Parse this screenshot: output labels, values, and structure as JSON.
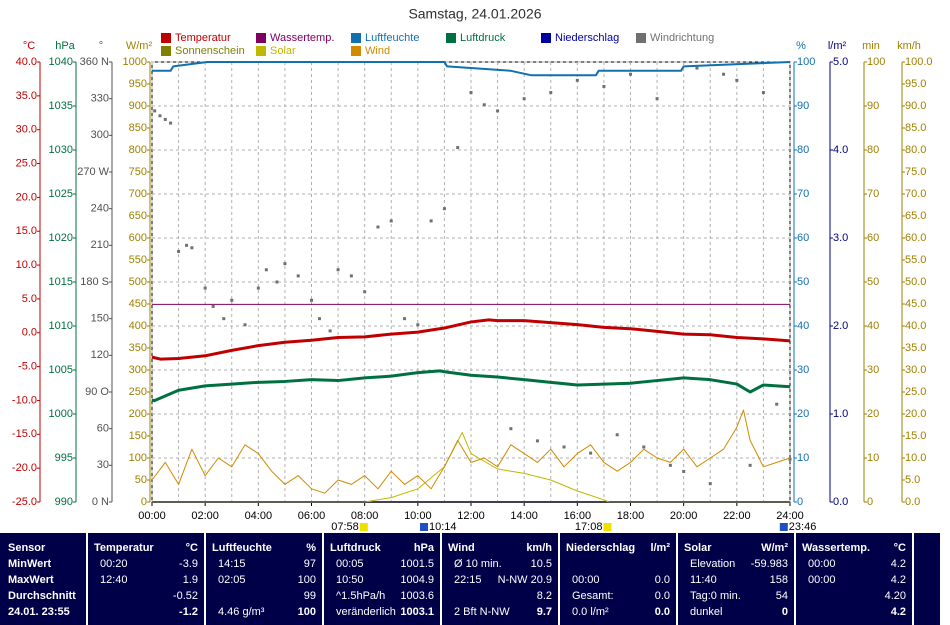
{
  "chart_data": {
    "type": "line",
    "title": "Samstag, 24.01.2026",
    "xlim": [
      0,
      24
    ],
    "xticks": [
      {
        "value": 0,
        "label": "00:00"
      },
      {
        "value": 2,
        "label": "02:00"
      },
      {
        "value": 4,
        "label": "04:00"
      },
      {
        "value": 6,
        "label": "06:00"
      },
      {
        "value": 8,
        "label": "08:00"
      },
      {
        "value": 10,
        "label": "10:00"
      },
      {
        "value": 12,
        "label": "12:00"
      },
      {
        "value": 14,
        "label": "14:00"
      },
      {
        "value": 16,
        "label": "16:00"
      },
      {
        "value": 18,
        "label": "18:00"
      },
      {
        "value": 20,
        "label": "20:00"
      },
      {
        "value": 22,
        "label": "22:00"
      },
      {
        "value": 24,
        "label": "24:00"
      }
    ],
    "xgrid": [
      0,
      1,
      2,
      3,
      4,
      5,
      6,
      7,
      8,
      9,
      10,
      11,
      12,
      13,
      14,
      15,
      16,
      17,
      18,
      19,
      20,
      21,
      22,
      23,
      24
    ],
    "axes": [
      {
        "label": "°C",
        "side": "left",
        "color": "#c00000",
        "lim": [
          -25,
          40
        ],
        "ticks": [
          {
            "value": 40,
            "label": "40.0"
          },
          {
            "value": 35,
            "label": "35.0"
          },
          {
            "value": 30,
            "label": "30.0"
          },
          {
            "value": 25,
            "label": "25.0"
          },
          {
            "value": 20,
            "label": "20.0"
          },
          {
            "value": 15,
            "label": "15.0"
          },
          {
            "value": 10,
            "label": "10.0"
          },
          {
            "value": 5,
            "label": "5.0"
          },
          {
            "value": 0,
            "label": "0.0"
          },
          {
            "value": -5,
            "label": "-5.0"
          },
          {
            "value": -10,
            "label": "-10.0"
          },
          {
            "value": -15,
            "label": "-15.0"
          },
          {
            "value": -20,
            "label": "-20.0"
          },
          {
            "value": -25,
            "label": "-25.0"
          }
        ]
      },
      {
        "label": "hPa",
        "side": "left",
        "color": "#007040",
        "lim": [
          990,
          1040
        ],
        "ticks": [
          1040,
          1035,
          1030,
          1025,
          1020,
          1015,
          1010,
          1005,
          1000,
          995,
          990
        ]
      },
      {
        "label": "°",
        "side": "left",
        "color": "#505050",
        "lim": [
          0,
          360
        ],
        "ticks": [
          {
            "value": 360,
            "label": "360 N"
          },
          330,
          300,
          {
            "value": 270,
            "label": "270 W"
          },
          240,
          210,
          {
            "value": 180,
            "label": "180 S"
          },
          150,
          120,
          {
            "value": 90,
            "label": "90 O"
          },
          60,
          30,
          {
            "value": 0,
            "label": "0 N"
          }
        ]
      },
      {
        "label": "W/m²",
        "side": "left",
        "color": "#a08000",
        "lim": [
          0,
          1000
        ],
        "ticks": [
          1000,
          950,
          900,
          850,
          800,
          750,
          700,
          650,
          600,
          550,
          500,
          450,
          400,
          350,
          300,
          250,
          200,
          150,
          100,
          50,
          0
        ]
      },
      {
        "label": "%",
        "side": "right",
        "color": "#1070b0",
        "lim": [
          0,
          100
        ],
        "grid": true,
        "ticks": [
          100,
          90,
          80,
          70,
          60,
          50,
          40,
          30,
          20,
          10,
          0
        ]
      },
      {
        "label": "l/m²",
        "side": "right",
        "color": "#000080",
        "lim": [
          0,
          5
        ],
        "ticks": [
          {
            "value": 5,
            "label": "5.0"
          },
          {
            "value": 4,
            "label": "4.0"
          },
          {
            "value": 3,
            "label": "3.0"
          },
          {
            "value": 2,
            "label": "2.0"
          },
          {
            "value": 1,
            "label": "1.0"
          },
          {
            "value": 0,
            "label": "0.0"
          }
        ]
      },
      {
        "label": "min",
        "side": "right",
        "color": "#a08000",
        "lim": [
          0,
          100
        ],
        "ticks": [
          100,
          90,
          80,
          70,
          60,
          50,
          40,
          30,
          20,
          10,
          0
        ]
      },
      {
        "label": "km/h",
        "side": "right",
        "color": "#a08000",
        "lim": [
          0,
          100
        ],
        "ticks": [
          {
            "value": 100,
            "label": "100.0"
          },
          {
            "value": 95,
            "label": "95.0"
          },
          {
            "value": 90,
            "label": "90.0"
          },
          {
            "value": 85,
            "label": "85.0"
          },
          {
            "value": 80,
            "label": "80.0"
          },
          {
            "value": 75,
            "label": "75.0"
          },
          {
            "value": 70,
            "label": "70.0"
          },
          {
            "value": 65,
            "label": "65.0"
          },
          {
            "value": 60,
            "label": "60.0"
          },
          {
            "value": 55,
            "label": "55.0"
          },
          {
            "value": 50,
            "label": "50.0"
          },
          {
            "value": 45,
            "label": "45.0"
          },
          {
            "value": 40,
            "label": "40.0"
          },
          {
            "value": 35,
            "label": "35.0"
          },
          {
            "value": 30,
            "label": "30.0"
          },
          {
            "value": 25,
            "label": "25.0"
          },
          {
            "value": 20,
            "label": "20.0"
          },
          {
            "value": 15,
            "label": "15.0"
          },
          {
            "value": 10,
            "label": "10.0"
          },
          {
            "value": 5,
            "label": "5.0"
          },
          {
            "value": 0,
            "label": "0.0"
          }
        ]
      }
    ],
    "series": [
      {
        "name": "Temperatur",
        "type": "line",
        "color": "#c00000",
        "width": 3,
        "axis": "°C",
        "x": [
          0,
          0.33,
          1,
          2,
          3,
          4,
          5,
          6,
          7,
          8,
          9,
          10,
          11,
          12,
          12.67,
          13,
          14,
          15,
          16,
          17,
          18,
          19,
          20,
          21,
          22,
          23,
          24
        ],
        "values": [
          -3.6,
          -3.9,
          -3.8,
          -3.4,
          -2.6,
          -1.9,
          -1.4,
          -1.1,
          -0.7,
          -0.6,
          -0.2,
          0.1,
          0.7,
          1.6,
          1.9,
          1.8,
          1.8,
          1.5,
          1.2,
          0.8,
          0.6,
          0.2,
          -0.2,
          -0.3,
          -0.7,
          -0.9,
          -1.2
        ]
      },
      {
        "name": "Wassertemp.",
        "type": "line",
        "color": "#800060",
        "width": 1,
        "axis": "°C",
        "x": [
          0,
          24
        ],
        "values": [
          4.2,
          4.2
        ]
      },
      {
        "name": "Luftfeuchte",
        "type": "line",
        "color": "#1070b0",
        "width": 2,
        "axis": "%",
        "x": [
          0,
          0.7,
          0.8,
          2.08,
          11,
          11.1,
          13.5,
          14.25,
          16.7,
          16.8,
          19.9,
          20,
          24
        ],
        "values": [
          98,
          98,
          99,
          100,
          100,
          99,
          98,
          97,
          97,
          98,
          98,
          99,
          100
        ]
      },
      {
        "name": "Luftdruck",
        "type": "line",
        "color": "#007040",
        "width": 3,
        "axis": "hPa",
        "x": [
          0,
          0.08,
          1,
          2,
          3,
          4,
          5,
          6,
          7,
          8,
          9,
          10,
          10.83,
          11,
          12,
          13,
          14,
          15,
          16,
          17,
          18,
          19,
          20,
          21,
          22,
          22.5,
          23,
          24
        ],
        "values": [
          1001.6,
          1001.5,
          1002.7,
          1003.2,
          1003.4,
          1003.6,
          1003.7,
          1003.9,
          1003.8,
          1004.1,
          1004.3,
          1004.7,
          1004.9,
          1004.8,
          1004.4,
          1004.2,
          1003.9,
          1003.6,
          1003.3,
          1003.4,
          1003.5,
          1003.8,
          1004.1,
          1003.9,
          1003.4,
          1002.5,
          1003.3,
          1003.1
        ]
      },
      {
        "name": "Niederschlag",
        "type": "line",
        "color": "#0000a0",
        "width": 2,
        "axis": "l/m²",
        "x": [
          0,
          24
        ],
        "values": [
          0,
          0
        ]
      },
      {
        "name": "Windrichtung",
        "type": "scatter",
        "color": "#707070",
        "axis": "°",
        "x": [
          0.1,
          0.3,
          0.5,
          0.7,
          1,
          1.3,
          1.5,
          2,
          2.3,
          2.7,
          3,
          3.5,
          4,
          4.3,
          4.7,
          5,
          5.5,
          6,
          6.3,
          6.7,
          7,
          7.5,
          8,
          8.5,
          9,
          9.5,
          10,
          10.5,
          11,
          11.5,
          12,
          12.5,
          13,
          13.5,
          14,
          14.5,
          15,
          15.5,
          16,
          16.5,
          17,
          17.5,
          18,
          18.5,
          19,
          19.5,
          20,
          20.5,
          21,
          21.5,
          22,
          22.5,
          23,
          23.5,
          24
        ],
        "values": [
          320,
          316,
          313,
          310,
          205,
          210,
          208,
          175,
          160,
          150,
          165,
          145,
          175,
          190,
          180,
          195,
          185,
          165,
          150,
          140,
          190,
          185,
          172,
          225,
          230,
          150,
          145,
          230,
          240,
          290,
          335,
          325,
          320,
          60,
          330,
          50,
          335,
          45,
          345,
          40,
          340,
          55,
          350,
          45,
          330,
          30,
          25,
          355,
          15,
          350,
          345,
          30,
          335,
          80,
          35
        ]
      },
      {
        "name": "Sonnenschein",
        "type": "line",
        "color": "#808000",
        "width": 1,
        "axis": "min",
        "x": [
          0,
          24
        ],
        "values": [
          0,
          0
        ]
      },
      {
        "name": "Solar",
        "type": "line",
        "color": "#c0b800",
        "width": 1,
        "axis": "W/m²",
        "x": [
          0,
          8,
          9,
          10,
          11,
          11.67,
          12,
          13,
          14,
          15,
          16,
          17,
          17.2,
          24
        ],
        "values": [
          0,
          0,
          10,
          30,
          80,
          158,
          110,
          75,
          65,
          50,
          25,
          5,
          0,
          0
        ]
      },
      {
        "name": "Wind",
        "type": "line",
        "color": "#d08a00",
        "width": 1,
        "axis": "km/h",
        "x": [
          0,
          0.5,
          1,
          1.5,
          2,
          2.5,
          3,
          3.5,
          4,
          4.5,
          5,
          5.5,
          6,
          6.5,
          7,
          7.5,
          8,
          8.5,
          9,
          9.5,
          10,
          10.5,
          11,
          11.5,
          12,
          12.5,
          13,
          13.5,
          14,
          14.5,
          15,
          15.5,
          16,
          16.5,
          17,
          17.5,
          18,
          18.5,
          19,
          19.5,
          20,
          20.5,
          21,
          21.5,
          22,
          22.25,
          22.5,
          23,
          23.5,
          24
        ],
        "values": [
          5,
          9,
          4,
          12,
          6,
          10,
          8,
          13,
          11,
          7,
          4,
          6,
          3,
          2,
          5,
          4,
          6,
          3,
          7,
          4,
          6,
          3,
          8,
          14,
          9,
          10,
          8,
          13,
          11,
          9,
          12,
          8,
          11,
          13,
          9,
          7,
          9,
          12,
          10,
          9,
          12,
          8,
          10,
          12,
          17,
          20.9,
          14,
          8,
          9,
          10
        ]
      }
    ],
    "sun_markers": [
      {
        "x": 7.967,
        "label": "07:58",
        "color": "#f0e000"
      },
      {
        "x": 10.233,
        "label": "10:14",
        "color": "#2050c0"
      },
      {
        "x": 17.133,
        "label": "17:08",
        "color": "#f0e000"
      },
      {
        "x": 23.767,
        "label": "23:46",
        "color": "#2050c0"
      }
    ]
  },
  "table": {
    "row_labels": [
      "Sensor",
      "MinWert",
      "MaxWert",
      "Durchschnitt",
      "24.01. 23:55"
    ],
    "columns": [
      {
        "name": "Temperatur",
        "unit": "°C",
        "cells": [
          [
            "00:20",
            "-3.9"
          ],
          [
            "12:40",
            "1.9"
          ],
          [
            null,
            "-0.52"
          ],
          [
            null,
            "-1.2"
          ]
        ]
      },
      {
        "name": "Luftfeuchte",
        "unit": "%",
        "cells": [
          [
            "14:15",
            "97"
          ],
          [
            "02:05",
            "100"
          ],
          [
            null,
            "99"
          ],
          [
            "4.46 g/m³",
            "100"
          ]
        ]
      },
      {
        "name": "Luftdruck",
        "unit": "hPa",
        "cells": [
          [
            "00:05",
            "1001.5"
          ],
          [
            "10:50",
            "1004.9"
          ],
          [
            "^1.5hPa/h",
            "1003.6"
          ],
          [
            "veränderlich",
            "1003.1"
          ]
        ]
      },
      {
        "name": "Wind",
        "unit": "km/h",
        "cells": [
          [
            "Ø 10 min.",
            "10.5"
          ],
          [
            "22:15",
            "N-NW 20.9"
          ],
          [
            null,
            "8.2"
          ],
          [
            "2 Bft N-NW",
            "9.7"
          ]
        ]
      },
      {
        "name": "Niederschlag",
        "unit": "l/m²",
        "cells": [
          [
            null,
            null
          ],
          [
            "00:00",
            "0.0"
          ],
          [
            "Gesamt:",
            "0.0"
          ],
          [
            "0.0 l/m²",
            "0.0"
          ]
        ]
      },
      {
        "name": "Solar",
        "unit": "W/m²",
        "cells": [
          [
            "Elevation",
            "-59.983"
          ],
          [
            "11:40",
            "158"
          ],
          [
            "Tag:0 min.",
            "54"
          ],
          [
            "dunkel",
            "0"
          ]
        ]
      },
      {
        "name": "Wassertemp.",
        "unit": "°C",
        "cells": [
          [
            "00:00",
            "4.2"
          ],
          [
            "00:00",
            "4.2"
          ],
          [
            null,
            "4.20"
          ],
          [
            null,
            "4.2"
          ]
        ]
      }
    ]
  }
}
